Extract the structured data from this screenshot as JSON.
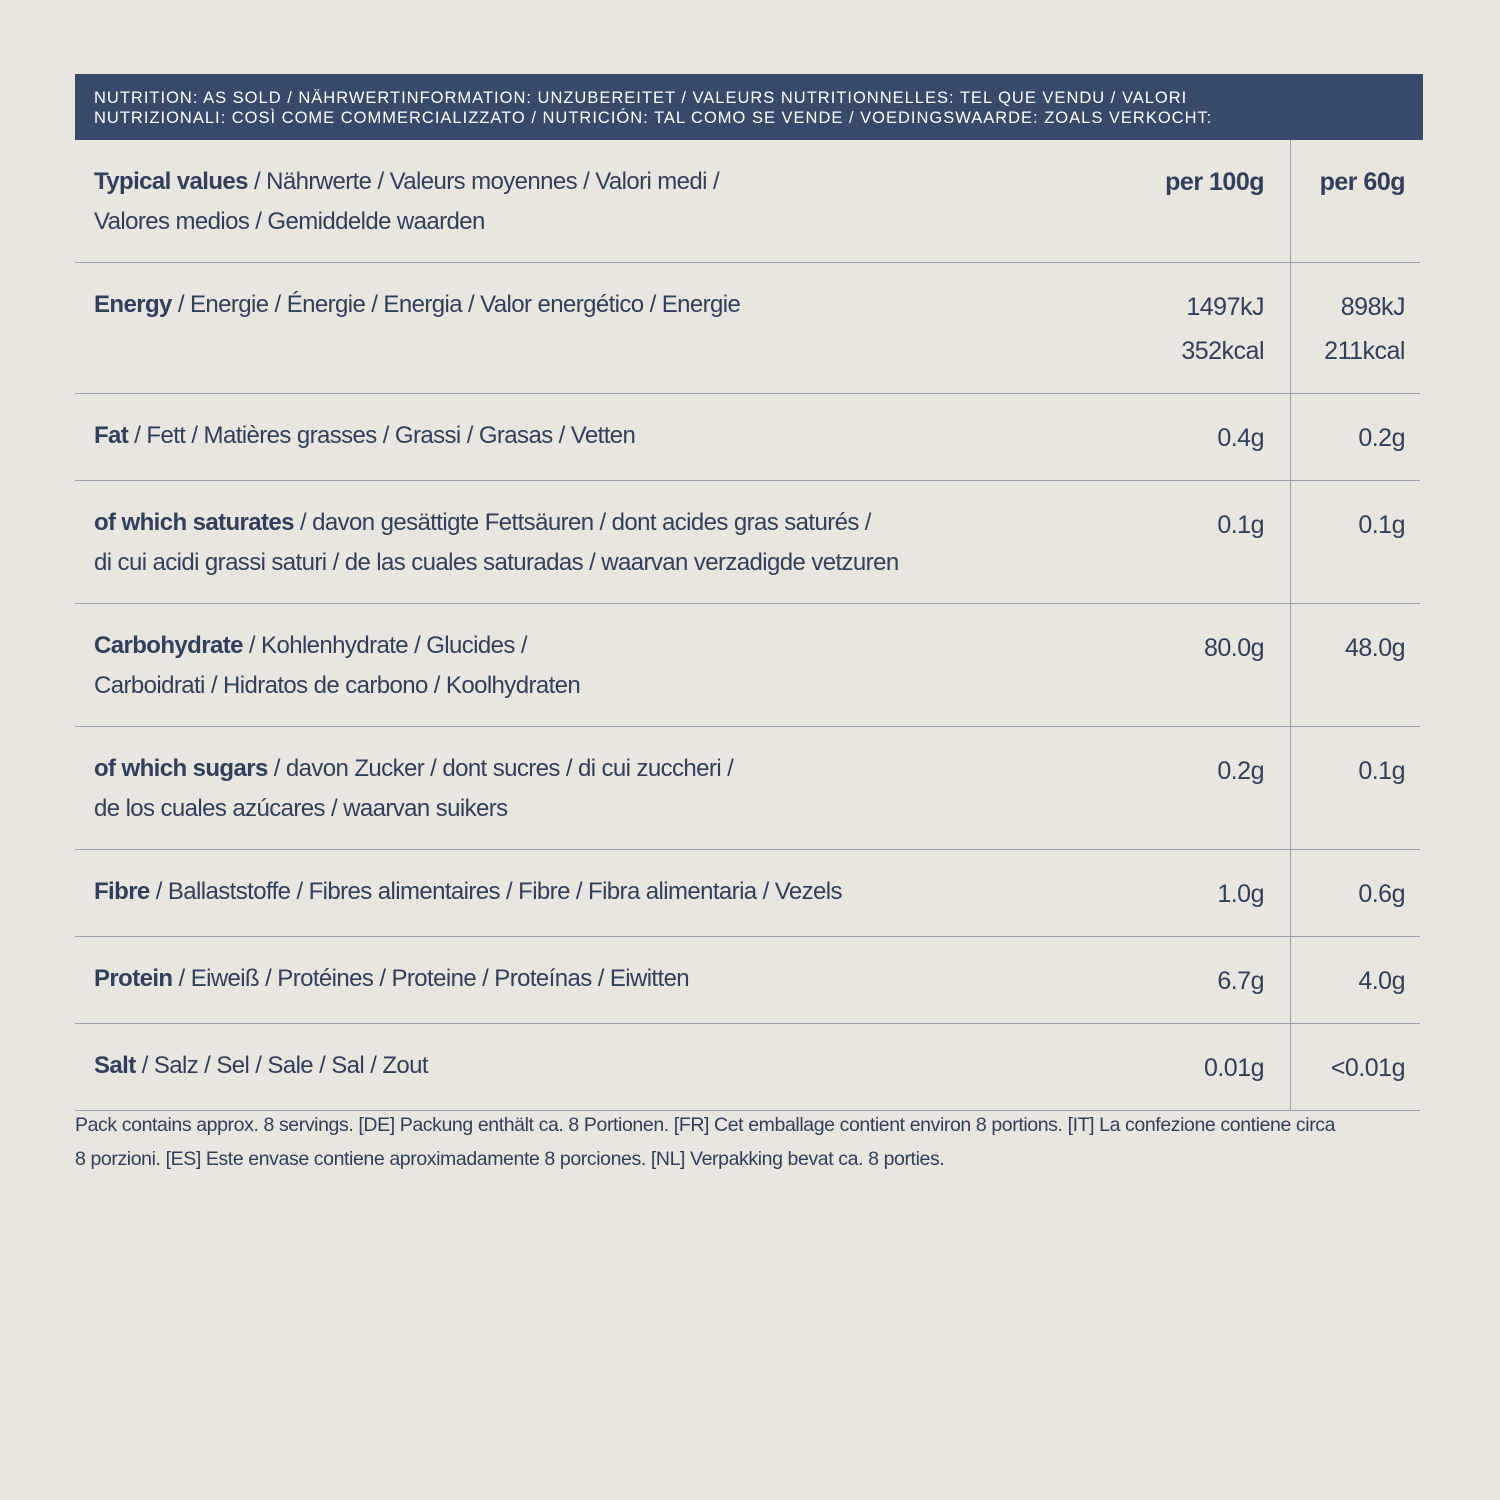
{
  "header": {
    "title_lines": [
      "NUTRITION: AS SOLD / NÄHRWERTINFORMATION: UNZUBEREITET / VALEURS NUTRITIONNELLES: TEL QUE VENDU / VALORI",
      "NUTRIZIONALI: COSÌ COME COMMERCIALIZZATO / NUTRICIÓN: TAL COMO SE VENDE / VOEDINGSWAARDE: ZOALS VERKOCHT:"
    ]
  },
  "table": {
    "columns": {
      "name": "Typical values",
      "lines": [
        " / Nährwerte / Valeurs moyennes / Valori medi /",
        "Valores medios / Gemiddelde waarden"
      ],
      "per100": [
        "per 100g"
      ],
      "per60": [
        "per 60g"
      ]
    },
    "rows": [
      {
        "name": "Energy",
        "lines": [
          " / Energie / Énergie / Energia / Valor energético / Energie"
        ],
        "per100": [
          "1497kJ",
          "352kcal"
        ],
        "per60": [
          "898kJ",
          "211kcal"
        ]
      },
      {
        "name": "Fat",
        "lines": [
          " / Fett / Matières grasses / Grassi / Grasas / Vetten"
        ],
        "per100": [
          "0.4g"
        ],
        "per60": [
          "0.2g"
        ]
      },
      {
        "name": "of which saturates",
        "lines": [
          " / davon gesättigte Fettsäuren / dont acides gras saturés /",
          "di cui acidi grassi saturi / de las cuales saturadas / waarvan verzadigde vetzuren"
        ],
        "per100": [
          "0.1g"
        ],
        "per60": [
          "0.1g"
        ]
      },
      {
        "name": "Carbohydrate",
        "lines": [
          " / Kohlenhydrate / Glucides /",
          "Carboidrati / Hidratos de carbono / Koolhydraten"
        ],
        "per100": [
          "80.0g"
        ],
        "per60": [
          "48.0g"
        ]
      },
      {
        "name": "of which sugars",
        "lines": [
          " / davon Zucker / dont sucres / di cui zuccheri /",
          "de los cuales azúcares / waarvan suikers"
        ],
        "per100": [
          "0.2g"
        ],
        "per60": [
          "0.1g"
        ]
      },
      {
        "name": "Fibre",
        "lines": [
          " / Ballaststoffe / Fibres alimentaires / Fibre / Fibra alimentaria / Vezels"
        ],
        "per100": [
          "1.0g"
        ],
        "per60": [
          "0.6g"
        ]
      },
      {
        "name": "Protein",
        "lines": [
          " / Eiweiß / Protéines / Proteine / Proteínas / Eiwitten"
        ],
        "per100": [
          "6.7g"
        ],
        "per60": [
          "4.0g"
        ]
      },
      {
        "name": "Salt",
        "lines": [
          " / Salz / Sel / Sale / Sal / Zout"
        ],
        "per100": [
          "0.01g"
        ],
        "per60": [
          "<0.01g"
        ]
      }
    ]
  },
  "footer": {
    "lines": [
      "Pack contains approx. 8 servings. [DE] Packung enthält ca. 8 Portionen. [FR] Cet emballage contient environ 8 portions. [IT] La confezione contiene circa",
      "8 porzioni. [ES] Este envase contiene aproximadamente 8 porciones. [NL] Verpakking bevat ca. 8 porties."
    ]
  }
}
